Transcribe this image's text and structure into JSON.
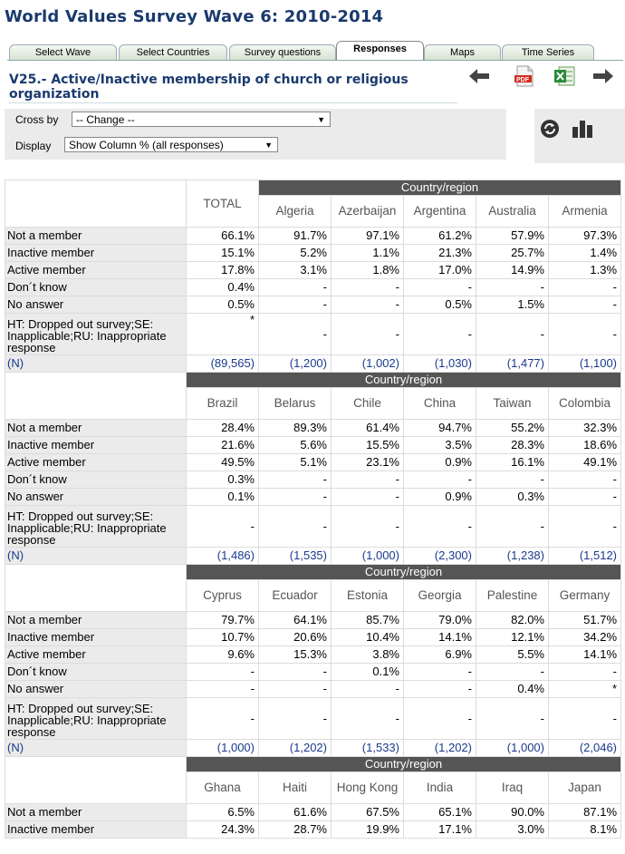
{
  "page_title": "World Values Survey Wave 6: 2010-2014",
  "tabs": [
    "Select Wave",
    "Select Countries",
    "Survey questions",
    "Responses",
    "Maps",
    "Time Series"
  ],
  "active_tab": "Responses",
  "question_title": "V25.- Active/Inactive membership of church or religious organization",
  "controls": {
    "cross_by_label": "Cross by",
    "cross_by_value": "-- Change --",
    "display_label": "Display",
    "display_value": "Show Column % (all responses)"
  },
  "icons": [
    "back-arrow-icon",
    "pdf-icon",
    "excel-icon",
    "forward-arrow-icon",
    "refresh-icon",
    "bar-chart-icon"
  ],
  "colors": {
    "title": "#1a3a6e",
    "header_band": "#555555",
    "row_label_bg": "#ebebeb",
    "n_row": "#1a3a8e"
  },
  "table": {
    "total_label": "TOTAL",
    "group_header": "Country/region",
    "row_labels": [
      "Not a member",
      "Inactive member",
      "Active member",
      "Don´t know",
      "No answer",
      "HT: Dropped out survey;SE: Inapplicable;RU: Inappropriate response",
      "(N)"
    ],
    "total_values": [
      "66.1%",
      "15.1%",
      "17.8%",
      "0.4%",
      "0.5%",
      "*",
      "(89,565)"
    ],
    "blocks": [
      {
        "countries": [
          "Algeria",
          "Azerbaijan",
          "Argentina",
          "Australia",
          "Armenia"
        ],
        "rows": [
          [
            "91.7%",
            "97.1%",
            "61.2%",
            "57.9%",
            "97.3%"
          ],
          [
            "5.2%",
            "1.1%",
            "21.3%",
            "25.7%",
            "1.4%"
          ],
          [
            "3.1%",
            "1.8%",
            "17.0%",
            "14.9%",
            "1.3%"
          ],
          [
            "-",
            "-",
            "-",
            "-",
            "-"
          ],
          [
            "-",
            "-",
            "0.5%",
            "1.5%",
            "-"
          ],
          [
            "-",
            "-",
            "-",
            "-",
            "-"
          ],
          [
            "(1,200)",
            "(1,002)",
            "(1,030)",
            "(1,477)",
            "(1,100)"
          ]
        ]
      },
      {
        "countries": [
          "Brazil",
          "Belarus",
          "Chile",
          "China",
          "Taiwan",
          "Colombia"
        ],
        "rows": [
          [
            "28.4%",
            "89.3%",
            "61.4%",
            "94.7%",
            "55.2%",
            "32.3%"
          ],
          [
            "21.6%",
            "5.6%",
            "15.5%",
            "3.5%",
            "28.3%",
            "18.6%"
          ],
          [
            "49.5%",
            "5.1%",
            "23.1%",
            "0.9%",
            "16.1%",
            "49.1%"
          ],
          [
            "0.3%",
            "-",
            "-",
            "-",
            "-",
            "-"
          ],
          [
            "0.1%",
            "-",
            "-",
            "0.9%",
            "0.3%",
            "-"
          ],
          [
            "-",
            "-",
            "-",
            "-",
            "-",
            "-"
          ],
          [
            "(1,486)",
            "(1,535)",
            "(1,000)",
            "(2,300)",
            "(1,238)",
            "(1,512)"
          ]
        ]
      },
      {
        "countries": [
          "Cyprus",
          "Ecuador",
          "Estonia",
          "Georgia",
          "Palestine",
          "Germany"
        ],
        "rows": [
          [
            "79.7%",
            "64.1%",
            "85.7%",
            "79.0%",
            "82.0%",
            "51.7%"
          ],
          [
            "10.7%",
            "20.6%",
            "10.4%",
            "14.1%",
            "12.1%",
            "34.2%"
          ],
          [
            "9.6%",
            "15.3%",
            "3.8%",
            "6.9%",
            "5.5%",
            "14.1%"
          ],
          [
            "-",
            "-",
            "0.1%",
            "-",
            "-",
            "-"
          ],
          [
            "-",
            "-",
            "-",
            "-",
            "0.4%",
            "*"
          ],
          [
            "-",
            "-",
            "-",
            "-",
            "-",
            "-"
          ],
          [
            "(1,000)",
            "(1,202)",
            "(1,533)",
            "(1,202)",
            "(1,000)",
            "(2,046)"
          ]
        ]
      },
      {
        "countries": [
          "Ghana",
          "Haiti",
          "Hong Kong",
          "India",
          "Iraq",
          "Japan"
        ],
        "rows": [
          [
            "6.5%",
            "61.6%",
            "67.5%",
            "65.1%",
            "90.0%",
            "87.1%"
          ],
          [
            "24.3%",
            "28.7%",
            "19.9%",
            "17.1%",
            "3.0%",
            "8.1%"
          ]
        ]
      }
    ]
  }
}
